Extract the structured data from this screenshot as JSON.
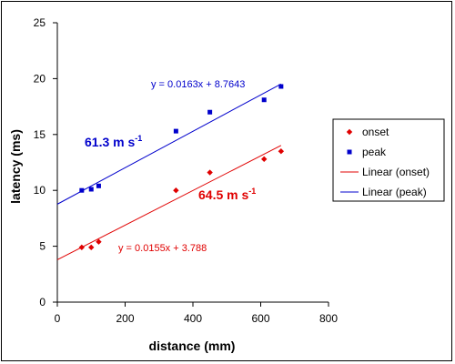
{
  "chart_data": {
    "type": "scatter",
    "xlabel": "distance (mm)",
    "ylabel": "latency (ms)",
    "xlim": [
      0,
      800
    ],
    "ylim": [
      0,
      25
    ],
    "xticks": [
      0,
      200,
      400,
      600,
      800
    ],
    "yticks": [
      0,
      5,
      10,
      15,
      20,
      25
    ],
    "grid": false,
    "legend_position": "right",
    "series": [
      {
        "name": "onset",
        "marker": "diamond",
        "color": "#e00000",
        "points": [
          {
            "x": 72,
            "y": 4.9
          },
          {
            "x": 100,
            "y": 4.9
          },
          {
            "x": 122,
            "y": 5.4
          },
          {
            "x": 350,
            "y": 10.0
          },
          {
            "x": 450,
            "y": 11.6
          },
          {
            "x": 610,
            "y": 12.8
          },
          {
            "x": 660,
            "y": 13.5
          }
        ]
      },
      {
        "name": "peak",
        "marker": "square",
        "color": "#0000cc",
        "points": [
          {
            "x": 72,
            "y": 10.0
          },
          {
            "x": 100,
            "y": 10.1
          },
          {
            "x": 122,
            "y": 10.4
          },
          {
            "x": 350,
            "y": 15.3
          },
          {
            "x": 450,
            "y": 17.0
          },
          {
            "x": 610,
            "y": 18.1
          },
          {
            "x": 660,
            "y": 19.3
          }
        ]
      }
    ],
    "trendlines": [
      {
        "name": "Linear (onset)",
        "color": "#e00000",
        "slope": 0.0155,
        "intercept": 3.788,
        "x_range": [
          0,
          660
        ],
        "equation": "y = 0.0155x + 3.788"
      },
      {
        "name": "Linear (peak)",
        "color": "#0000cc",
        "slope": 0.0163,
        "intercept": 8.7643,
        "x_range": [
          0,
          660
        ],
        "equation": "y = 0.0163x + 8.7643"
      }
    ],
    "annotations": [
      {
        "id": "peak-speed",
        "base": "61.3 m s",
        "sup": "-1",
        "color": "#0000cc"
      },
      {
        "id": "onset-speed",
        "base": "64.5 m s",
        "sup": "-1",
        "color": "#e00000"
      }
    ]
  }
}
